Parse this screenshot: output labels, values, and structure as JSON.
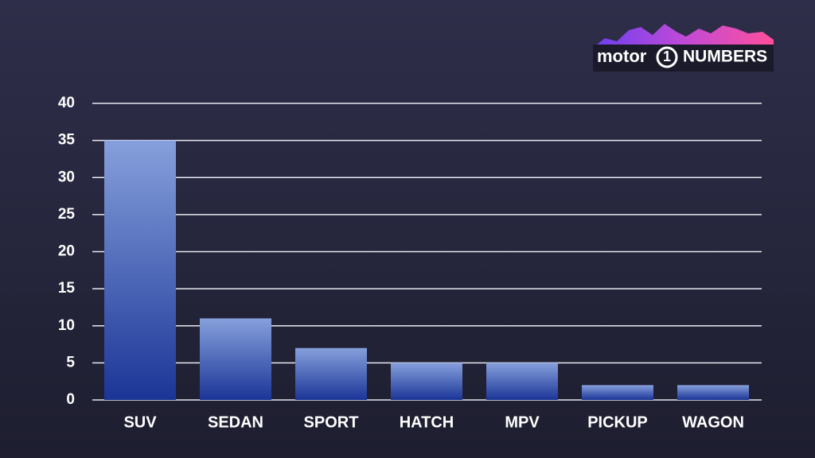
{
  "logo": {
    "brand": "motor",
    "digit": "1",
    "suffix": "NUMBERS"
  },
  "chart_data": {
    "type": "bar",
    "categories": [
      "SUV",
      "SEDAN",
      "SPORT",
      "HATCH",
      "MPV",
      "PICKUP",
      "WAGON"
    ],
    "values": [
      35,
      11,
      7,
      5,
      5,
      2,
      2
    ],
    "color": [
      "#86a0dc",
      "#1b3597"
    ],
    "ylim": [
      0,
      40
    ],
    "yticks": [
      0,
      5,
      10,
      15,
      20,
      25,
      30,
      35,
      40
    ],
    "grid": true
  }
}
